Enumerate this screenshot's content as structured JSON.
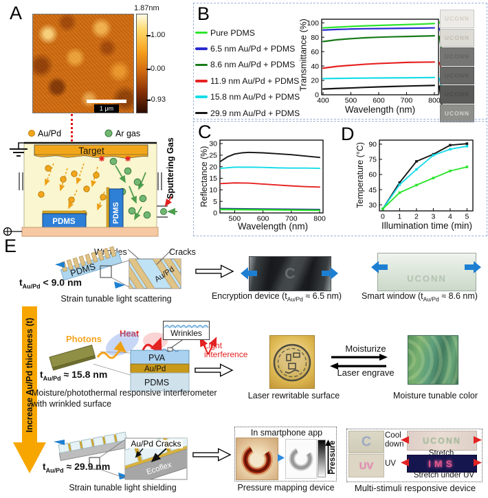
{
  "panelA": {
    "label": "A",
    "colorbar_title": "1.87nm",
    "colorbar_tick1": "1.00",
    "colorbar_tick2": "0.00",
    "colorbar_tick3": "-0.93",
    "scalebar": "1 μm",
    "legend_aupd": "Au/Pd",
    "legend_ar": "Ar gas",
    "target": "Target",
    "pdms": "PDMS",
    "sputtering_gas": "Sputtering Gas"
  },
  "panelB": {
    "label": "B",
    "legend": [
      {
        "label": "Pure PDMS",
        "color": "#2ce42c"
      },
      {
        "label": "6.5 nm Au/Pd + PDMS",
        "color": "#2a2ad0"
      },
      {
        "label": "8.6 nm Au/Pd + PDMS",
        "color": "#177a17"
      },
      {
        "label": "11.9 nm Au/Pd + PDMS",
        "color": "#e62222"
      },
      {
        "label": "15.8 nm Au/Pd + PDMS",
        "color": "#16dce8"
      },
      {
        "label": "29.9 nm Au/Pd + PDMS",
        "color": "#151515"
      }
    ],
    "samples": [
      {
        "label": "UCONN",
        "bg": "#ecebe7",
        "fg": "#d2cec2"
      },
      {
        "label": "UCONN",
        "bg": "#dddbd5",
        "fg": "#c0bcb2"
      },
      {
        "label": "UCONN",
        "bg": "#767674",
        "fg": "#626260"
      },
      {
        "label": "UCONN",
        "bg": "#686866",
        "fg": "#575755"
      },
      {
        "label": "UCONN",
        "bg": "#5a5a58",
        "fg": "#4c4c4a"
      },
      {
        "label": "UCONN",
        "bg": "#8e8e8a",
        "fg": "#d2d2cc"
      }
    ]
  },
  "panelC": {
    "label": "C"
  },
  "panelD": {
    "label": "D"
  },
  "panelE": {
    "label": "E",
    "thickness_arrow_label": "Increase Au/Pd thickness (t)",
    "thickness_arrow_color": "#F7A600",
    "stretch_arrow_color": "#1d7fd2",
    "red_arrow_color": "#e32222",
    "row1": {
      "t_pre": "t",
      "t_sub": "Au/Pd",
      "t_rest": " < 9.0 nm",
      "pdms": "PDMS",
      "wrinkles": "Wrinkles",
      "cracks": "Cracks",
      "aupd": "Au/Pd",
      "caption": "Strain tunable light scattering",
      "dev1_pre": "Encryption device (t",
      "dev1_sub": "Au/Pd",
      "dev1_post": " ≈ 6.5 nm)",
      "dev1_photo_text": "C",
      "dev2_pre": "Smart window (t",
      "dev2_sub": "Au/Pd",
      "dev2_post": " ≈ 8.6 nm)",
      "dev2_photo_text": "UCONN"
    },
    "row2": {
      "t_pre": "t",
      "t_sub": "Au/Pd",
      "t_rest": " ≈ 15.8 nm",
      "photons": "Photons",
      "heat": "Heat",
      "wrinkles": "Wrinkles",
      "pva": "PVA",
      "aupd": "Au/Pd",
      "pdms": "PDMS",
      "light_interference_1": "Light",
      "light_interference_2": "interference",
      "caption_1": "Moisture/photothermal responsive interferometer",
      "caption_2": "with wrinkled surface",
      "dev1_caption": "Laser rewritable surface",
      "arrow_fwd": "Moisturize",
      "arrow_back": "Laser engrave",
      "dev2_caption": "Moisture tunable color"
    },
    "row3": {
      "t_pre": "t",
      "t_sub": "Au/Pd",
      "t_rest": " ≈ 29.9 nm",
      "aupd_cracks": "Au/Pd Cracks",
      "ecoflex": "Ecoflex",
      "caption": "Strain tunable light shielding",
      "app_label": "In smartphone app",
      "pressure_label": "Pressure",
      "pressure_caption": "Pressure mapping device",
      "cool_down": "Cool down",
      "stretch": "Stretch",
      "uv_label": "UV",
      "stretch_uv": "Stretch under UV",
      "photo_c": "C",
      "photo_uconn": "UCONN",
      "photo_uv": "UV",
      "photo_ims": "IMS",
      "multi_caption": "Multi-stimuli responsive device"
    }
  },
  "chart_data": [
    {
      "id": "B",
      "type": "line",
      "title": "",
      "xlabel": "Wavelength (nm)",
      "ylabel": "Transmittance (%)",
      "xlim": [
        395,
        815
      ],
      "ylim": [
        0,
        105
      ],
      "xticks": [
        400,
        500,
        600,
        700,
        800
      ],
      "yticks": [
        0,
        20,
        40,
        60,
        80,
        100
      ],
      "grid": false,
      "legend_position": "left",
      "series": [
        {
          "name": "Pure PDMS",
          "color": "#2ce42c",
          "x": [
            400,
            450,
            500,
            550,
            600,
            650,
            700,
            750,
            800
          ],
          "y": [
            93,
            94,
            95,
            95.8,
            96.4,
            97,
            97.6,
            98.2,
            99
          ]
        },
        {
          "name": "6.5 nm Au/Pd + PDMS",
          "color": "#2a2ad0",
          "x": [
            400,
            450,
            500,
            550,
            600,
            650,
            700,
            750,
            800
          ],
          "y": [
            90,
            90.8,
            91.4,
            91.8,
            92,
            92.2,
            92.5,
            92.7,
            93
          ]
        },
        {
          "name": "8.6 nm Au/Pd + PDMS",
          "color": "#177a17",
          "x": [
            400,
            450,
            500,
            550,
            600,
            650,
            700,
            750,
            800
          ],
          "y": [
            74,
            76.5,
            78,
            79.2,
            80,
            80.6,
            81,
            81.5,
            82
          ]
        },
        {
          "name": "11.9 nm Au/Pd + PDMS",
          "color": "#e62222",
          "x": [
            400,
            450,
            500,
            550,
            600,
            650,
            700,
            750,
            800
          ],
          "y": [
            37,
            39.5,
            41,
            42.4,
            43.5,
            44.2,
            45,
            45.3,
            45.5
          ]
        },
        {
          "name": "15.8 nm Au/Pd + PDMS",
          "color": "#16dce8",
          "x": [
            400,
            450,
            500,
            550,
            600,
            650,
            700,
            750,
            800
          ],
          "y": [
            22.5,
            22.8,
            23,
            23.2,
            23.4,
            23.5,
            23.6,
            23.8,
            24
          ]
        },
        {
          "name": "29.9 nm Au/Pd + PDMS",
          "color": "#151515",
          "x": [
            400,
            450,
            500,
            550,
            600,
            650,
            700,
            750,
            800
          ],
          "y": [
            8,
            8.8,
            9.5,
            10.3,
            11,
            11.6,
            12.1,
            12.6,
            13
          ]
        }
      ]
    },
    {
      "id": "C",
      "type": "line",
      "title": "",
      "xlabel": "Wavelength (nm)",
      "ylabel": "Reflectance (%)",
      "xlim": [
        448,
        812
      ],
      "ylim": [
        0,
        31.5
      ],
      "xticks": [
        500,
        600,
        700,
        800
      ],
      "yticks": [
        0,
        5,
        10,
        15,
        20,
        25,
        30
      ],
      "grid": false,
      "series": [
        {
          "name": "29.9 nm Au/Pd + PDMS",
          "color": "#151515",
          "x": [
            450,
            475,
            500,
            525,
            550,
            600,
            650,
            700,
            750,
            800
          ],
          "y": [
            22.3,
            24.3,
            25.5,
            26,
            26.2,
            26,
            25.6,
            25.2,
            24.6,
            24
          ]
        },
        {
          "name": "15.8 nm Au/Pd + PDMS",
          "color": "#16dce8",
          "x": [
            450,
            500,
            550,
            600,
            650,
            700,
            750,
            800
          ],
          "y": [
            19.3,
            19.8,
            19.8,
            19.7,
            19.5,
            19.4,
            19.4,
            19.3
          ]
        },
        {
          "name": "11.9 nm Au/Pd + PDMS",
          "color": "#e62222",
          "x": [
            450,
            500,
            550,
            600,
            650,
            700,
            750,
            800
          ],
          "y": [
            12.7,
            13,
            12.9,
            12.5,
            12.1,
            11.7,
            11.4,
            11.2
          ]
        },
        {
          "name": "6.5 nm Au/Pd + PDMS",
          "color": "#2a2ad0",
          "x": [
            450,
            800
          ],
          "y": [
            1.9,
            1.5
          ]
        },
        {
          "name": "8.6 nm Au/Pd + PDMS",
          "color": "#177a17",
          "x": [
            450,
            800
          ],
          "y": [
            1.7,
            1.3
          ]
        },
        {
          "name": "Pure PDMS",
          "color": "#2ce42c",
          "x": [
            450,
            800
          ],
          "y": [
            1.45,
            1.1
          ]
        }
      ]
    },
    {
      "id": "D",
      "type": "line",
      "marker": true,
      "title": "",
      "xlabel": "Illumination time (min)",
      "ylabel": "Temperature (°C)",
      "xlim": [
        -0.2,
        5.35
      ],
      "ylim": [
        24,
        94
      ],
      "xticks": [
        0,
        1,
        2,
        3,
        4,
        5
      ],
      "yticks": [
        30,
        45,
        60,
        75,
        90
      ],
      "grid": false,
      "series": [
        {
          "name": "29.9 nm Au/Pd + PDMS",
          "color": "#151515",
          "x": [
            0,
            1,
            2,
            3,
            4,
            5
          ],
          "y": [
            26,
            52,
            73,
            80,
            89,
            90.5
          ]
        },
        {
          "name": "15.8 nm Au/Pd + PDMS",
          "color": "#16dce8",
          "x": [
            0,
            1,
            2,
            3,
            4,
            5
          ],
          "y": [
            26,
            50,
            65,
            79,
            85,
            88
          ]
        },
        {
          "name": "Pure PDMS",
          "color": "#2ce42c",
          "x": [
            0,
            1,
            2,
            3,
            4,
            5
          ],
          "y": [
            26,
            42,
            49.5,
            56.5,
            63.5,
            67.5
          ]
        }
      ]
    }
  ]
}
